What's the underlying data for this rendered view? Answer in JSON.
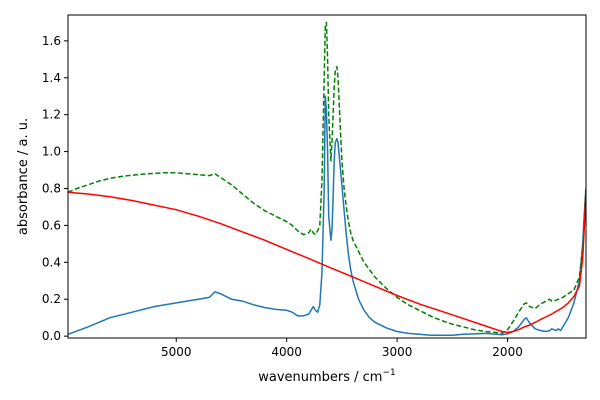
{
  "chart_data": {
    "type": "line",
    "title": "",
    "xlabel": "wavenumbers / cm",
    "xlabel_sup": "−1",
    "ylabel": "absorbance / a. u.",
    "xlim": [
      5980,
      1290
    ],
    "ylim": [
      -0.01,
      1.74
    ],
    "x_reversed": true,
    "grid": false,
    "legend": "none",
    "xticks": [
      5000,
      4000,
      3000,
      2000
    ],
    "yticks": [
      0.0,
      0.2,
      0.4,
      0.6,
      0.8,
      1.0,
      1.2,
      1.4,
      1.6
    ],
    "xtick_labels": [
      "5000",
      "4000",
      "3000",
      "2000"
    ],
    "ytick_labels": [
      "0.0",
      "0.2",
      "0.4",
      "0.6",
      "0.8",
      "1.0",
      "1.2",
      "1.4",
      "1.6"
    ],
    "colors": {
      "blue": "#1f77b4",
      "green": "#008000",
      "red": "#ff0000"
    },
    "series": [
      {
        "color": "#1f77b4",
        "style": "solid",
        "x": [
          5980,
          5800,
          5600,
          5400,
          5200,
          5000,
          4800,
          4700,
          4650,
          4600,
          4500,
          4400,
          4300,
          4200,
          4100,
          4000,
          3950,
          3900,
          3850,
          3800,
          3760,
          3740,
          3720,
          3700,
          3680,
          3660,
          3650,
          3640,
          3630,
          3620,
          3600,
          3590,
          3580,
          3570,
          3560,
          3545,
          3535,
          3520,
          3500,
          3480,
          3460,
          3440,
          3420,
          3400,
          3350,
          3300,
          3250,
          3200,
          3100,
          3000,
          2900,
          2800,
          2700,
          2600,
          2500,
          2400,
          2300,
          2200,
          2100,
          2050,
          2000,
          1950,
          1900,
          1850,
          1830,
          1800,
          1750,
          1700,
          1650,
          1620,
          1600,
          1580,
          1560,
          1540,
          1520,
          1500,
          1450,
          1400,
          1350,
          1320,
          1300,
          1290
        ],
        "y": [
          0.01,
          0.05,
          0.1,
          0.13,
          0.16,
          0.18,
          0.2,
          0.21,
          0.24,
          0.23,
          0.2,
          0.19,
          0.17,
          0.155,
          0.145,
          0.14,
          0.13,
          0.11,
          0.11,
          0.12,
          0.16,
          0.14,
          0.13,
          0.17,
          0.35,
          0.8,
          1.3,
          1.22,
          1.0,
          0.65,
          0.52,
          0.58,
          0.75,
          0.95,
          1.05,
          1.07,
          1.05,
          0.95,
          0.82,
          0.68,
          0.55,
          0.44,
          0.36,
          0.3,
          0.2,
          0.14,
          0.1,
          0.075,
          0.045,
          0.025,
          0.015,
          0.01,
          0.005,
          0.005,
          0.005,
          0.01,
          0.012,
          0.015,
          0.01,
          0.008,
          0.012,
          0.025,
          0.05,
          0.09,
          0.1,
          0.07,
          0.04,
          0.03,
          0.025,
          0.03,
          0.04,
          0.035,
          0.03,
          0.04,
          0.03,
          0.05,
          0.1,
          0.18,
          0.3,
          0.5,
          0.72,
          0.8
        ]
      },
      {
        "color": "#008000",
        "style": "dashed",
        "x": [
          5980,
          5900,
          5800,
          5700,
          5600,
          5500,
          5400,
          5300,
          5200,
          5100,
          5000,
          4900,
          4800,
          4700,
          4650,
          4600,
          4500,
          4400,
          4300,
          4200,
          4100,
          4000,
          3950,
          3900,
          3850,
          3800,
          3780,
          3760,
          3740,
          3720,
          3700,
          3680,
          3660,
          3650,
          3640,
          3630,
          3620,
          3600,
          3590,
          3580,
          3570,
          3560,
          3545,
          3535,
          3520,
          3500,
          3480,
          3460,
          3440,
          3420,
          3400,
          3350,
          3300,
          3200,
          3100,
          3000,
          2900,
          2800,
          2700,
          2600,
          2500,
          2400,
          2300,
          2200,
          2100,
          2050,
          2000,
          1950,
          1900,
          1850,
          1830,
          1800,
          1750,
          1700,
          1650,
          1620,
          1600,
          1560,
          1500,
          1450,
          1400,
          1350,
          1320,
          1300,
          1290
        ],
        "y": [
          0.78,
          0.8,
          0.82,
          0.84,
          0.855,
          0.865,
          0.872,
          0.878,
          0.882,
          0.885,
          0.885,
          0.88,
          0.875,
          0.87,
          0.88,
          0.86,
          0.82,
          0.77,
          0.72,
          0.68,
          0.65,
          0.62,
          0.6,
          0.57,
          0.55,
          0.56,
          0.58,
          0.56,
          0.55,
          0.57,
          0.6,
          0.85,
          1.4,
          1.68,
          1.7,
          1.5,
          1.2,
          0.95,
          1.05,
          1.2,
          1.35,
          1.44,
          1.46,
          1.4,
          1.2,
          0.95,
          0.8,
          0.7,
          0.62,
          0.56,
          0.52,
          0.46,
          0.4,
          0.32,
          0.26,
          0.21,
          0.17,
          0.14,
          0.11,
          0.085,
          0.065,
          0.05,
          0.035,
          0.025,
          0.02,
          0.015,
          0.035,
          0.08,
          0.13,
          0.175,
          0.18,
          0.16,
          0.15,
          0.175,
          0.19,
          0.2,
          0.19,
          0.195,
          0.21,
          0.23,
          0.25,
          0.32,
          0.48,
          0.7,
          0.8
        ]
      },
      {
        "color": "#ff0000",
        "style": "solid",
        "x": [
          5980,
          5800,
          5600,
          5400,
          5200,
          5000,
          4800,
          4600,
          4400,
          4200,
          4000,
          3800,
          3600,
          3400,
          3200,
          3000,
          2800,
          2600,
          2400,
          2200,
          2100,
          2050,
          2000,
          1950,
          1900,
          1850,
          1800,
          1700,
          1600,
          1500,
          1450,
          1400,
          1350,
          1320,
          1300,
          1290
        ],
        "y": [
          0.78,
          0.77,
          0.755,
          0.735,
          0.71,
          0.685,
          0.65,
          0.61,
          0.565,
          0.52,
          0.47,
          0.42,
          0.37,
          0.32,
          0.27,
          0.22,
          0.175,
          0.135,
          0.095,
          0.055,
          0.035,
          0.025,
          0.02,
          0.025,
          0.035,
          0.05,
          0.06,
          0.09,
          0.12,
          0.155,
          0.18,
          0.215,
          0.27,
          0.42,
          0.65,
          0.8
        ]
      }
    ]
  }
}
